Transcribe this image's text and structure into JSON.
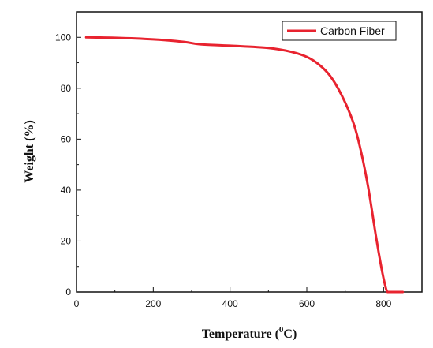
{
  "chart_data": {
    "type": "line",
    "title": "",
    "xlabel": "Temperature (",
    "xlabel_sup": "0",
    "xlabel_unit": "C)",
    "ylabel": "Weight (%)",
    "xlim": [
      0,
      900
    ],
    "ylim": [
      0,
      110
    ],
    "xticks": [
      0,
      200,
      400,
      600,
      800
    ],
    "yticks": [
      0,
      20,
      40,
      60,
      80,
      100
    ],
    "grid": false,
    "legend_position": "top-right",
    "series": [
      {
        "name": "Carbon Fiber",
        "color": "#e8232f",
        "x": [
          25,
          100,
          200,
          280,
          320,
          400,
          500,
          560,
          600,
          630,
          660,
          690,
          720,
          740,
          760,
          780,
          795,
          805,
          810,
          815,
          850
        ],
        "y": [
          100,
          99.8,
          99.2,
          98.2,
          97.3,
          96.7,
          95.8,
          94.3,
          92.3,
          89.5,
          85,
          77.5,
          67,
          56,
          41,
          22,
          9,
          2,
          0,
          0,
          0
        ]
      }
    ]
  }
}
